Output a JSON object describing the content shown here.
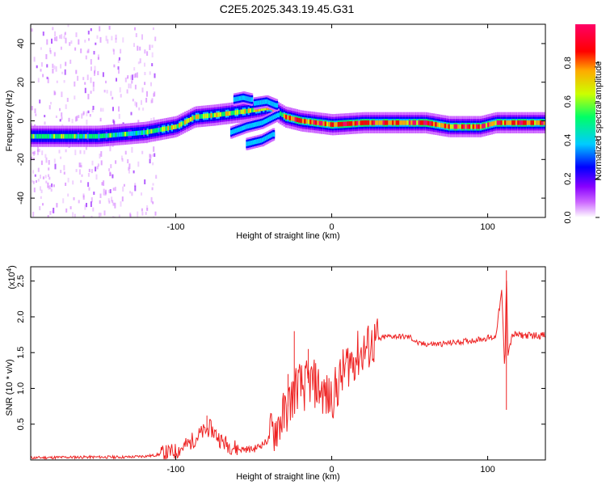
{
  "title": "C2E5.2025.343.19.45.G31",
  "chart_data": [
    {
      "type": "heatmap",
      "xlabel": "Height of straight line (km)",
      "ylabel": "Frequency (Hz)",
      "xlim": [
        -193,
        137
      ],
      "ylim": [
        -50,
        50
      ],
      "x_ticks": [
        -100,
        0,
        100
      ],
      "y_ticks": [
        -40,
        -20,
        0,
        20,
        40
      ],
      "colorbar": {
        "label": "Normalized spectral amplitude",
        "range": [
          0,
          1
        ],
        "ticks": [
          0.0,
          0.2,
          0.4,
          0.6,
          0.8
        ],
        "colors": [
          "#ffffff",
          "#cc66ff",
          "#8800ff",
          "#0000ff",
          "#00ccff",
          "#00ff66",
          "#ccff00",
          "#ffaa00",
          "#ff0000",
          "#ff0066"
        ]
      },
      "ridge": [
        {
          "x": -193,
          "f": -8
        },
        {
          "x": -150,
          "f": -8
        },
        {
          "x": -120,
          "f": -6
        },
        {
          "x": -100,
          "f": -3
        },
        {
          "x": -88,
          "f": 2
        },
        {
          "x": -75,
          "f": 3
        },
        {
          "x": -65,
          "f": 4
        },
        {
          "x": -55,
          "f": 5
        },
        {
          "x": -40,
          "f": 7
        },
        {
          "x": -30,
          "f": 2
        },
        {
          "x": -20,
          "f": 0
        },
        {
          "x": -10,
          "f": -1
        },
        {
          "x": 0,
          "f": -2
        },
        {
          "x": 20,
          "f": -1
        },
        {
          "x": 60,
          "f": -1
        },
        {
          "x": 75,
          "f": -3
        },
        {
          "x": 95,
          "f": -3
        },
        {
          "x": 105,
          "f": -1
        },
        {
          "x": 137,
          "f": -1
        }
      ]
    },
    {
      "type": "line",
      "xlabel": "Height of straight line (km)",
      "ylabel": "SNR (10 * v/v)",
      "y_multiplier": "(x10",
      "y_multiplier_exp": "4",
      "xlim": [
        -193,
        137
      ],
      "ylim": [
        0,
        2.7
      ],
      "x_ticks": [
        -100,
        0,
        100
      ],
      "y_ticks": [
        0.5,
        1.0,
        1.5,
        2.0,
        2.5
      ],
      "color": "#ee2222",
      "series": [
        {
          "x": [
            -193,
            -160,
            -130,
            -115,
            -100,
            -92,
            -85,
            -78,
            -70,
            -60,
            -50,
            -42,
            -36,
            -30,
            -26,
            -22,
            -18,
            -14,
            -10,
            -6,
            -2,
            2,
            6,
            10,
            16,
            22,
            28,
            34,
            40,
            46,
            50,
            56,
            70,
            90,
            105,
            109,
            111,
            112,
            113,
            116,
            125,
            137
          ],
          "y": [
            0.03,
            0.04,
            0.04,
            0.06,
            0.12,
            0.22,
            0.35,
            0.45,
            0.25,
            0.15,
            0.15,
            0.25,
            0.45,
            0.65,
            0.85,
            1.05,
            1.0,
            1.1,
            1.05,
            0.95,
            0.85,
            0.95,
            1.15,
            1.35,
            1.45,
            1.55,
            1.65,
            1.72,
            1.73,
            1.72,
            1.72,
            1.62,
            1.62,
            1.67,
            1.72,
            2.35,
            1.2,
            2.65,
            1.5,
            1.75,
            1.74,
            1.74
          ]
        }
      ],
      "spikes": [
        {
          "x": -24,
          "y": 1.8
        },
        {
          "x": -15,
          "y": 1.55
        },
        {
          "x": -28,
          "y": 1.2
        },
        {
          "x": -80,
          "y": 0.62
        },
        {
          "x": 112,
          "y": 0.7
        }
      ]
    }
  ]
}
